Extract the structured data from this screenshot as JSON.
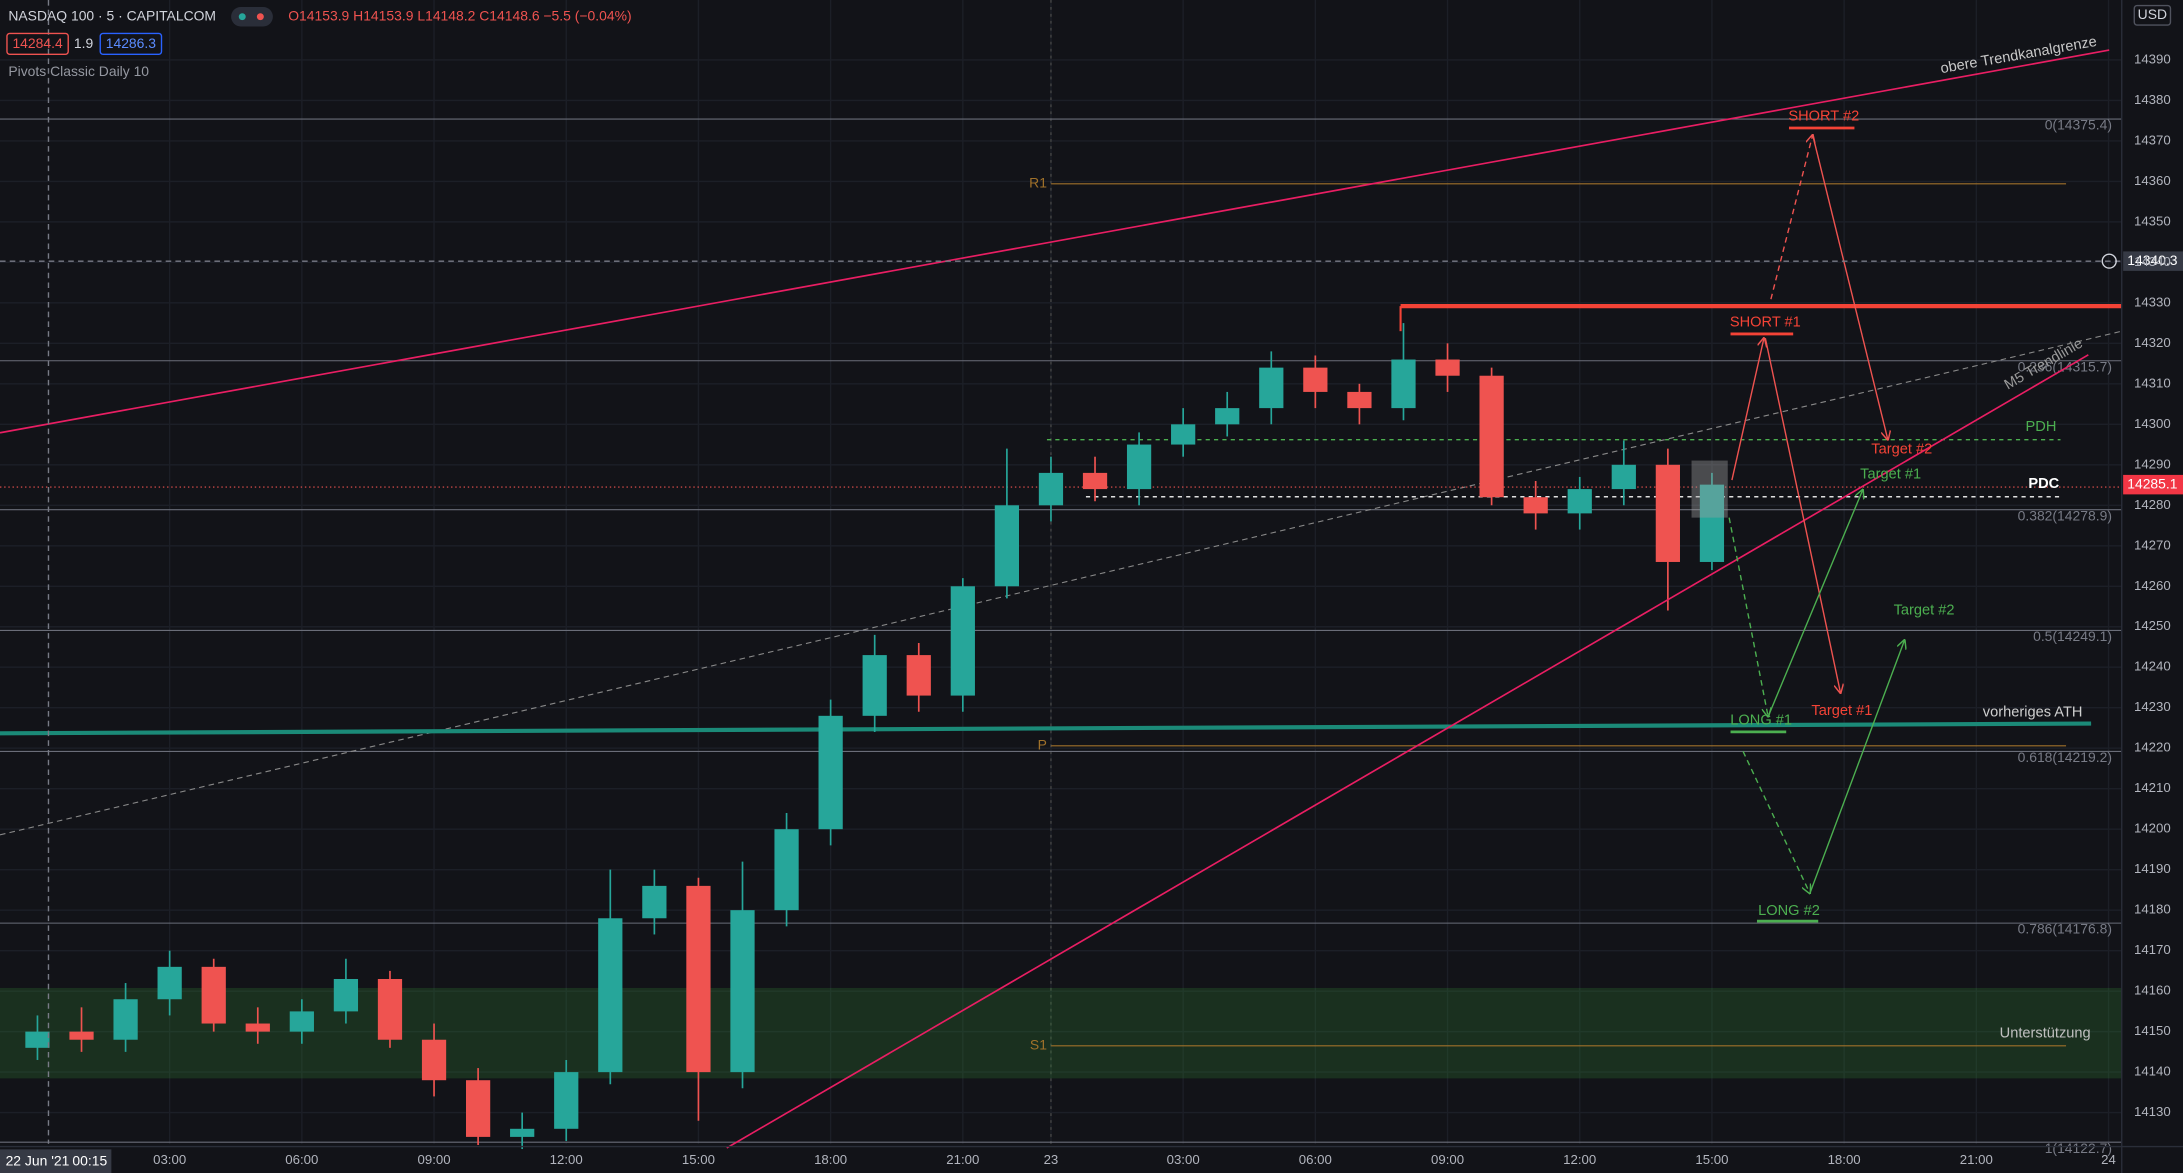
{
  "chart_data": {
    "type": "candlestick",
    "title": "NASDAQ 100 · 5 · CAPITALCOM",
    "ohlc": "O14153.9 H14153.9 L14148.2 C14148.6 −5.5 (−0.04%)",
    "bid": "14284.4",
    "spread": "1.9",
    "ask": "14286.3",
    "indicator": "Pivots Classic Daily 10",
    "currency": "USD",
    "x": [
      0,
      1,
      2,
      3,
      4,
      5,
      6,
      7,
      8,
      9,
      10,
      11,
      12,
      13,
      14,
      15,
      16,
      17,
      18,
      19,
      20,
      21,
      22,
      23,
      24,
      25,
      26,
      27,
      28,
      29,
      30,
      31,
      32,
      33,
      34,
      35,
      36,
      37,
      38
    ],
    "open": [
      14146,
      14150,
      14148,
      14158,
      14166,
      14152,
      14150,
      14155,
      14163,
      14148,
      14138,
      14124,
      14126,
      14140,
      14178,
      14186,
      14140,
      14180,
      14200,
      14228,
      14243,
      14233,
      14260,
      14280,
      14288,
      14284,
      14295,
      14300,
      14304,
      14314,
      14308,
      14304,
      14316,
      14312,
      14282,
      14278,
      14284,
      14290,
      14266
    ],
    "high": [
      14154,
      14156,
      14162,
      14170,
      14168,
      14156,
      14158,
      14168,
      14165,
      14152,
      14141,
      14130,
      14143,
      14190,
      14190,
      14188,
      14192,
      14204,
      14232,
      14248,
      14246,
      14262,
      14294,
      14292,
      14292,
      14298,
      14304,
      14308,
      14318,
      14317,
      14310,
      14325,
      14320,
      14314,
      14286,
      14287,
      14296,
      14294,
      14288
    ],
    "low": [
      14143,
      14145,
      14145,
      14154,
      14150,
      14147,
      14147,
      14152,
      14146,
      14134,
      14122,
      14121,
      14123,
      14137,
      14174,
      14128,
      14136,
      14176,
      14196,
      14224,
      14229,
      14229,
      14257,
      14276,
      14281,
      14280,
      14292,
      14297,
      14300,
      14304,
      14300,
      14301,
      14308,
      14280,
      14274,
      14274,
      14280,
      14254,
      14264
    ],
    "close": [
      14150,
      14148,
      14158,
      14166,
      14152,
      14150,
      14155,
      14163,
      14148,
      14138,
      14124,
      14126,
      14140,
      14178,
      14186,
      14140,
      14180,
      14200,
      14228,
      14243,
      14233,
      14260,
      14280,
      14288,
      14284,
      14295,
      14300,
      14304,
      14314,
      14308,
      14304,
      14316,
      14312,
      14282,
      14278,
      14284,
      14290,
      14266,
      14285.1
    ],
    "up_color": "#26a69a",
    "down_color": "#ef5350",
    "xlim": [
      -0.85,
      47.3
    ],
    "xticks": [
      {
        "value": 3,
        "label": "03:00"
      },
      {
        "value": 6,
        "label": "06:00"
      },
      {
        "value": 9,
        "label": "09:00"
      },
      {
        "value": 12,
        "label": "12:00"
      },
      {
        "value": 15,
        "label": "15:00"
      },
      {
        "value": 18,
        "label": "18:00"
      },
      {
        "value": 21,
        "label": "21:00"
      },
      23,
      {
        "value": 26,
        "label": "03:00"
      },
      {
        "value": 29,
        "label": "06:00"
      },
      {
        "value": 32,
        "label": "09:00"
      },
      {
        "value": 35,
        "label": "12:00"
      },
      {
        "value": 38,
        "label": "15:00"
      },
      {
        "value": 41,
        "label": "18:00"
      },
      {
        "value": 44,
        "label": "21:00"
      },
      {
        "value": 47,
        "label": "24"
      }
    ],
    "ylim": [
      14122.3,
      14404.8
    ],
    "yticks": [
      14130,
      14140,
      14150,
      14160,
      14170,
      14180,
      14190,
      14200,
      14210,
      14220,
      14230,
      14240,
      14250,
      14260,
      14270,
      14280,
      14290,
      14300,
      14310,
      14320,
      14330,
      14340,
      14350,
      14360,
      14370,
      14380,
      14390
    ],
    "grid": true,
    "crosshair": {
      "x": 0.25,
      "y": 14340.3,
      "date": "22 Jun '21",
      "time": "00:15"
    },
    "fib_levels": [
      {
        "value": 14375.4,
        "label": "0(14375.4)"
      },
      {
        "value": 14315.7,
        "label": "0.236(14315.7)"
      },
      {
        "value": 14278.9,
        "label": "0.382(14278.9)"
      },
      {
        "value": 14249.1,
        "label": "0.5(14249.1)"
      },
      {
        "value": 14219.2,
        "label": "0.618(14219.2)"
      },
      {
        "value": 14176.8,
        "label": "0.786(14176.8)"
      },
      {
        "value": 14122.7,
        "label": "1(14122.7)"
      }
    ],
    "pivots": [
      {
        "name": "R1",
        "value": 14359.4
      },
      {
        "name": "P",
        "value": 14220.6
      },
      {
        "name": "S1",
        "value": 14146.5
      }
    ],
    "annotations": {
      "upper_channel": "obere Trendkanalgrenze",
      "m5_trend": "M5 Trendlinie",
      "short2": "SHORT #2",
      "short1": "SHORT #1",
      "short_target2": "Target #2",
      "long_target1": "Target #1",
      "pdh": "PDH",
      "pdc": "PDC",
      "long_target2": "Target #2",
      "long1": "LONG #1",
      "short_target1": "Target #1",
      "ath": "vorheriges ATH",
      "long2": "LONG #2",
      "support": "Unterstützung"
    }
  }
}
